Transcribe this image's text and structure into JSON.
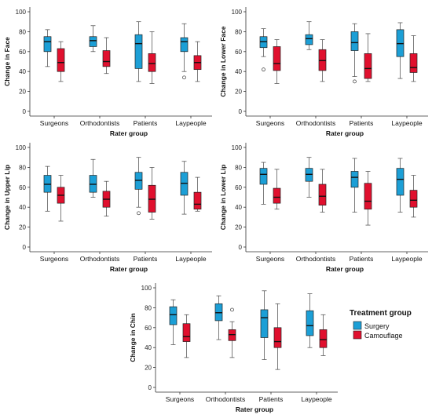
{
  "chart_data": [
    {
      "type": "box",
      "ylabel": "Change in Face",
      "xlabel": "Rater group",
      "categories": [
        "Surgeons",
        "Orthodontists",
        "Patients",
        "Laypeople"
      ],
      "ylim": [
        0,
        100
      ],
      "yticks": [
        0,
        20,
        40,
        60,
        80,
        100
      ],
      "series": [
        {
          "name": "Surgery",
          "boxes": [
            {
              "min": 45,
              "q1": 60,
              "median": 70,
              "q3": 75,
              "max": 82,
              "outliers": []
            },
            {
              "min": 60,
              "q1": 65,
              "median": 71,
              "q3": 75,
              "max": 86,
              "outliers": []
            },
            {
              "min": 30,
              "q1": 43,
              "median": 68,
              "q3": 77,
              "max": 90,
              "outliers": []
            },
            {
              "min": 40,
              "q1": 60,
              "median": 70,
              "q3": 74,
              "max": 88,
              "outliers": [
                34
              ]
            }
          ]
        },
        {
          "name": "Camouflage",
          "boxes": [
            {
              "min": 30,
              "q1": 40,
              "median": 49,
              "q3": 63,
              "max": 70,
              "outliers": []
            },
            {
              "min": 38,
              "q1": 45,
              "median": 50,
              "q3": 61,
              "max": 74,
              "outliers": []
            },
            {
              "min": 28,
              "q1": 40,
              "median": 48,
              "q3": 58,
              "max": 80,
              "outliers": []
            },
            {
              "min": 30,
              "q1": 42,
              "median": 49,
              "q3": 56,
              "max": 70,
              "outliers": []
            }
          ]
        }
      ]
    },
    {
      "type": "box",
      "ylabel": "Change in Lower Face",
      "xlabel": "Rater group",
      "categories": [
        "Surgeons",
        "Orthodontists",
        "Patients",
        "Laypeople"
      ],
      "ylim": [
        0,
        100
      ],
      "yticks": [
        0,
        20,
        40,
        60,
        80,
        100
      ],
      "series": [
        {
          "name": "Surgery",
          "boxes": [
            {
              "min": 55,
              "q1": 64,
              "median": 70,
              "q3": 75,
              "max": 83,
              "outliers": [
                42
              ]
            },
            {
              "min": 62,
              "q1": 67,
              "median": 73,
              "q3": 77,
              "max": 90,
              "outliers": []
            },
            {
              "min": 35,
              "q1": 61,
              "median": 69,
              "q3": 80,
              "max": 88,
              "outliers": [
                30
              ]
            },
            {
              "min": 33,
              "q1": 55,
              "median": 68,
              "q3": 82,
              "max": 89,
              "outliers": []
            }
          ]
        },
        {
          "name": "Camouflage",
          "boxes": [
            {
              "min": 28,
              "q1": 41,
              "median": 48,
              "q3": 65,
              "max": 72,
              "outliers": []
            },
            {
              "min": 30,
              "q1": 41,
              "median": 51,
              "q3": 62,
              "max": 72,
              "outliers": []
            },
            {
              "min": 30,
              "q1": 33,
              "median": 43,
              "q3": 58,
              "max": 78,
              "outliers": []
            },
            {
              "min": 30,
              "q1": 39,
              "median": 44,
              "q3": 58,
              "max": 76,
              "outliers": []
            }
          ]
        }
      ]
    },
    {
      "type": "box",
      "ylabel": "Change in Upper Lip",
      "xlabel": "Rater group",
      "categories": [
        "Surgeons",
        "Orthodontists",
        "Patients",
        "Laypeople"
      ],
      "ylim": [
        0,
        100
      ],
      "yticks": [
        0,
        20,
        40,
        60,
        80,
        100
      ],
      "series": [
        {
          "name": "Surgery",
          "boxes": [
            {
              "min": 36,
              "q1": 55,
              "median": 63,
              "q3": 72,
              "max": 81,
              "outliers": []
            },
            {
              "min": 50,
              "q1": 55,
              "median": 63,
              "q3": 72,
              "max": 88,
              "outliers": []
            },
            {
              "min": 40,
              "q1": 58,
              "median": 67,
              "q3": 75,
              "max": 90,
              "outliers": [
                34
              ]
            },
            {
              "min": 33,
              "q1": 52,
              "median": 64,
              "q3": 75,
              "max": 86,
              "outliers": []
            }
          ]
        },
        {
          "name": "Camouflage",
          "boxes": [
            {
              "min": 26,
              "q1": 44,
              "median": 52,
              "q3": 60,
              "max": 72,
              "outliers": []
            },
            {
              "min": 31,
              "q1": 40,
              "median": 48,
              "q3": 56,
              "max": 66,
              "outliers": []
            },
            {
              "min": 28,
              "q1": 35,
              "median": 48,
              "q3": 62,
              "max": 80,
              "outliers": []
            },
            {
              "min": 36,
              "q1": 38,
              "median": 43,
              "q3": 55,
              "max": 70,
              "outliers": []
            }
          ]
        }
      ]
    },
    {
      "type": "box",
      "ylabel": "Change in Lower Lip",
      "xlabel": "Rater group",
      "categories": [
        "Surgeons",
        "Orthodontists",
        "Patients",
        "Laypeople"
      ],
      "ylim": [
        0,
        100
      ],
      "yticks": [
        0,
        20,
        40,
        60,
        80,
        100
      ],
      "series": [
        {
          "name": "Surgery",
          "boxes": [
            {
              "min": 43,
              "q1": 63,
              "median": 73,
              "q3": 79,
              "max": 85,
              "outliers": []
            },
            {
              "min": 50,
              "q1": 66,
              "median": 73,
              "q3": 79,
              "max": 90,
              "outliers": []
            },
            {
              "min": 35,
              "q1": 60,
              "median": 70,
              "q3": 76,
              "max": 89,
              "outliers": []
            },
            {
              "min": 35,
              "q1": 52,
              "median": 68,
              "q3": 79,
              "max": 89,
              "outliers": []
            }
          ]
        },
        {
          "name": "Camouflage",
          "boxes": [
            {
              "min": 38,
              "q1": 44,
              "median": 50,
              "q3": 59,
              "max": 78,
              "outliers": []
            },
            {
              "min": 35,
              "q1": 42,
              "median": 51,
              "q3": 63,
              "max": 78,
              "outliers": []
            },
            {
              "min": 22,
              "q1": 38,
              "median": 46,
              "q3": 64,
              "max": 76,
              "outliers": []
            },
            {
              "min": 30,
              "q1": 40,
              "median": 47,
              "q3": 57,
              "max": 72,
              "outliers": []
            }
          ]
        }
      ]
    },
    {
      "type": "box",
      "ylabel": "Change in Chin",
      "xlabel": "Rater group",
      "categories": [
        "Surgeons",
        "Orthodontists",
        "Patients",
        "Laypeople"
      ],
      "ylim": [
        0,
        100
      ],
      "yticks": [
        0,
        20,
        40,
        60,
        80,
        100
      ],
      "series": [
        {
          "name": "Surgery",
          "boxes": [
            {
              "min": 43,
              "q1": 63,
              "median": 73,
              "q3": 81,
              "max": 88,
              "outliers": []
            },
            {
              "min": 48,
              "q1": 67,
              "median": 75,
              "q3": 84,
              "max": 92,
              "outliers": []
            },
            {
              "min": 28,
              "q1": 50,
              "median": 70,
              "q3": 78,
              "max": 97,
              "outliers": []
            },
            {
              "min": 40,
              "q1": 52,
              "median": 62,
              "q3": 77,
              "max": 94,
              "outliers": []
            }
          ]
        },
        {
          "name": "Camouflage",
          "boxes": [
            {
              "min": 30,
              "q1": 46,
              "median": 51,
              "q3": 64,
              "max": 73,
              "outliers": []
            },
            {
              "min": 30,
              "q1": 47,
              "median": 53,
              "q3": 58,
              "max": 66,
              "outliers": [
                78
              ]
            },
            {
              "min": 18,
              "q1": 40,
              "median": 46,
              "q3": 60,
              "max": 84,
              "outliers": []
            },
            {
              "min": 32,
              "q1": 40,
              "median": 48,
              "q3": 58,
              "max": 73,
              "outliers": []
            }
          ]
        }
      ]
    }
  ],
  "legend": {
    "title": "Treatment group",
    "items": [
      {
        "label": "Surgery",
        "color": "#1c9fd6"
      },
      {
        "label": "Camouflage",
        "color": "#e0102e"
      }
    ]
  }
}
